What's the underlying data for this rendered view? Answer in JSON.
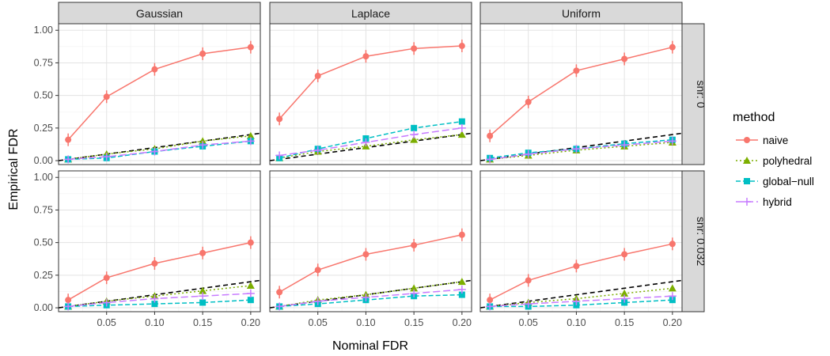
{
  "chart_data": {
    "type": "line",
    "xlabel": "Nominal FDR",
    "ylabel": "Empirical FDR",
    "xlim": [
      0,
      0.21
    ],
    "ylim": [
      -0.03,
      1.05
    ],
    "x_ticks": [
      0.05,
      0.1,
      0.15,
      0.2
    ],
    "x_tick_labels": [
      "0.05",
      "0.10",
      "0.15",
      "0.20"
    ],
    "y_ticks": [
      0,
      0.25,
      0.5,
      0.75,
      1.0
    ],
    "y_tick_labels": [
      "0.00",
      "0.25",
      "0.50",
      "0.75",
      "1.00"
    ],
    "grid": true,
    "legend_position": "right",
    "column_facets": [
      "Gaussian",
      "Laplace",
      "Uniform"
    ],
    "row_facets": [
      "snr: 0",
      "snr: 0.032"
    ],
    "x": [
      0.01,
      0.05,
      0.1,
      0.15,
      0.2
    ],
    "reference_line": "y = x",
    "legend": {
      "title": "method",
      "entries": [
        {
          "key": "naive",
          "label": "naive",
          "color": "#F8766D",
          "marker": "circle",
          "dash": "solid"
        },
        {
          "key": "polyhedral",
          "label": "polyhedral",
          "color": "#7CAE00",
          "marker": "triangle",
          "dash": "dotted"
        },
        {
          "key": "global-null",
          "label": "global−null",
          "color": "#00BFC4",
          "marker": "square",
          "dash": "dashed"
        },
        {
          "key": "hybrid",
          "label": "hybrid",
          "color": "#C77CFF",
          "marker": "plus",
          "dash": "longdash"
        }
      ]
    },
    "panels": [
      {
        "col": 0,
        "row": 0,
        "series": {
          "naive": [
            0.16,
            0.49,
            0.7,
            0.82,
            0.87
          ],
          "polyhedral": [
            0.01,
            0.05,
            0.09,
            0.15,
            0.19
          ],
          "global-null": [
            0.01,
            0.02,
            0.07,
            0.11,
            0.15
          ],
          "hybrid": [
            0.01,
            0.03,
            0.07,
            0.12,
            0.15
          ]
        }
      },
      {
        "col": 1,
        "row": 0,
        "series": {
          "naive": [
            0.32,
            0.65,
            0.8,
            0.86,
            0.88
          ],
          "polyhedral": [
            0.02,
            0.07,
            0.11,
            0.16,
            0.2
          ],
          "global-null": [
            0.02,
            0.09,
            0.17,
            0.25,
            0.3
          ],
          "hybrid": [
            0.04,
            0.08,
            0.14,
            0.2,
            0.25
          ]
        }
      },
      {
        "col": 2,
        "row": 0,
        "series": {
          "naive": [
            0.19,
            0.45,
            0.69,
            0.78,
            0.87
          ],
          "polyhedral": [
            0.01,
            0.04,
            0.08,
            0.11,
            0.14
          ],
          "global-null": [
            0.02,
            0.06,
            0.09,
            0.13,
            0.16
          ],
          "hybrid": [
            0.01,
            0.05,
            0.09,
            0.12,
            0.15
          ]
        }
      },
      {
        "col": 0,
        "row": 1,
        "series": {
          "naive": [
            0.06,
            0.23,
            0.34,
            0.42,
            0.5
          ],
          "polyhedral": [
            0.01,
            0.05,
            0.09,
            0.13,
            0.17
          ],
          "global-null": [
            0.01,
            0.02,
            0.03,
            0.04,
            0.06
          ],
          "hybrid": [
            0.01,
            0.04,
            0.07,
            0.09,
            0.11
          ]
        }
      },
      {
        "col": 1,
        "row": 1,
        "series": {
          "naive": [
            0.12,
            0.29,
            0.41,
            0.48,
            0.56
          ],
          "polyhedral": [
            0.01,
            0.06,
            0.1,
            0.15,
            0.2
          ],
          "global-null": [
            0.01,
            0.03,
            0.06,
            0.09,
            0.1
          ],
          "hybrid": [
            0.01,
            0.05,
            0.08,
            0.11,
            0.14
          ]
        }
      },
      {
        "col": 2,
        "row": 1,
        "series": {
          "naive": [
            0.06,
            0.21,
            0.32,
            0.41,
            0.49
          ],
          "polyhedral": [
            0.01,
            0.04,
            0.07,
            0.11,
            0.15
          ],
          "global-null": [
            0.01,
            0.01,
            0.02,
            0.04,
            0.06
          ],
          "hybrid": [
            0.01,
            0.03,
            0.05,
            0.07,
            0.09
          ]
        }
      }
    ]
  }
}
